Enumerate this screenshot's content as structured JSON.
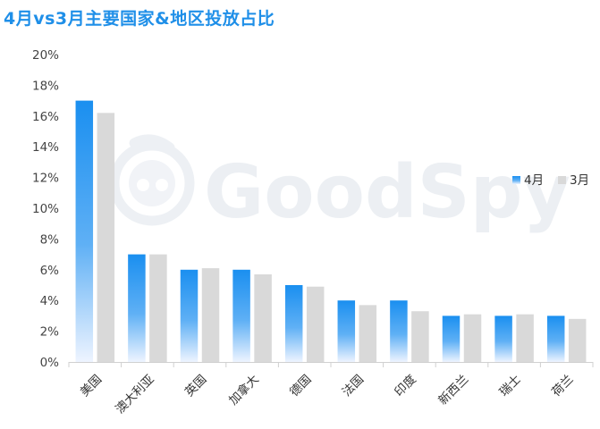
{
  "header": {
    "title": "4月vs3月主要国家&地区投放占比"
  },
  "watermark": {
    "text": "GoodSpy"
  },
  "colors": {
    "apr_top": "#1a8ff0",
    "apr_bottom": "#eef4ff",
    "mar": "#d9d9d9",
    "title": "#1f8fe8"
  },
  "chart_data": {
    "type": "bar",
    "categories": [
      "美国",
      "澳大利亚",
      "英国",
      "加拿大",
      "德国",
      "法国",
      "印度",
      "新西兰",
      "瑞士",
      "荷兰"
    ],
    "series": [
      {
        "name": "4月",
        "values": [
          17.0,
          7.0,
          6.0,
          6.0,
          5.0,
          4.0,
          4.0,
          3.0,
          3.0,
          3.0
        ]
      },
      {
        "name": "3月",
        "values": [
          16.2,
          7.0,
          6.1,
          5.7,
          4.9,
          3.7,
          3.3,
          3.1,
          3.1,
          2.8
        ]
      }
    ],
    "ylim": [
      0,
      20
    ],
    "yticks": [
      "0%",
      "2%",
      "4%",
      "6%",
      "8%",
      "10%",
      "12%",
      "14%",
      "16%",
      "18%",
      "20%"
    ],
    "grid": false,
    "legend": "right"
  }
}
